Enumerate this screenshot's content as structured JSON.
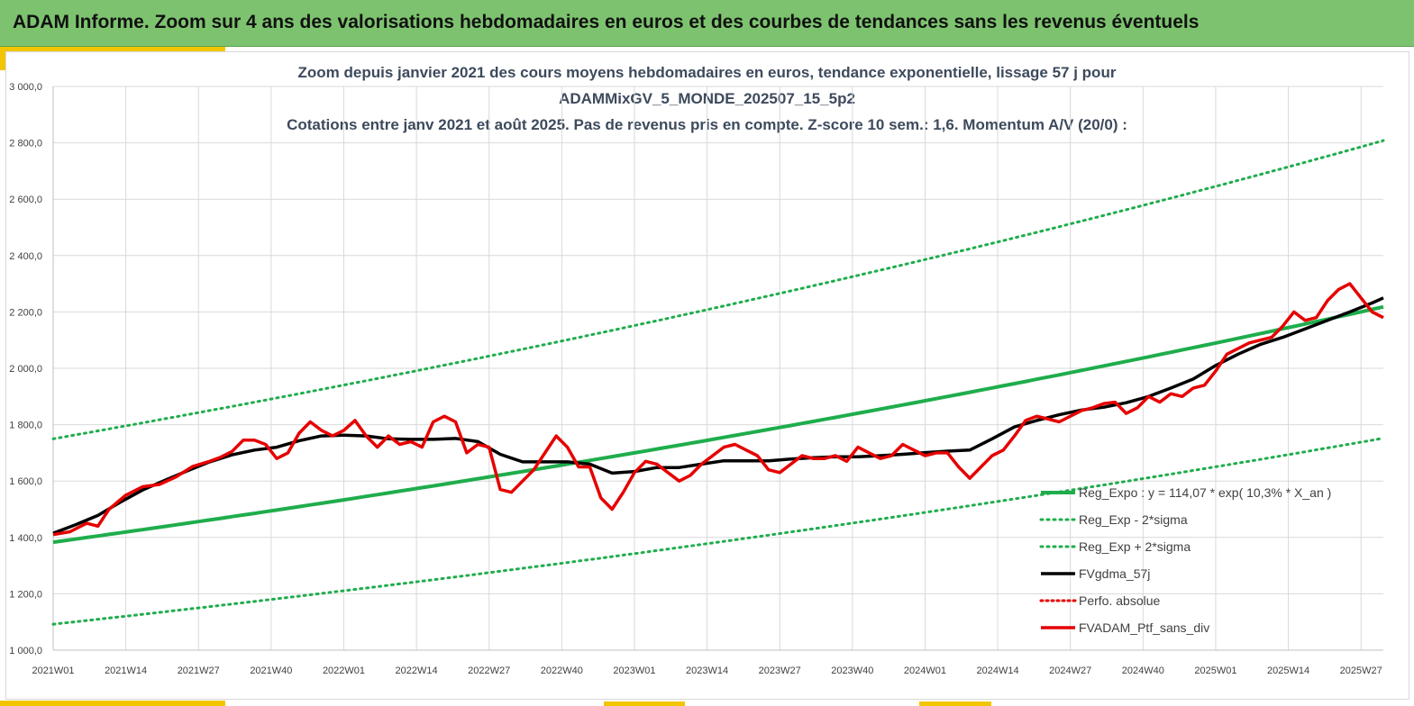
{
  "banner": {
    "title": "ADAM Informe. Zoom sur 4 ans des valorisations hebdomadaires en euros et des courbes de tendances sans les revenus éventuels"
  },
  "colors": {
    "banner": "#7dc36f",
    "accent": "#f2c500",
    "reg_expo": "#1fad4c",
    "sigma_bands": "#1fad4c",
    "fvgdma": "#000000",
    "perfo": "#e60000",
    "fvadam": "#e60000"
  },
  "chart_data": {
    "type": "line",
    "title_lines": [
      "Zoom depuis janvier 2021 des cours moyens hebdomadaires  en euros, tendance exponentielle, lissage 57 j pour",
      "ADAMMixGV_5_MONDE_202507_15_5p2",
      "Cotations entre janv 2021 et août 2025. Pas de revenus pris en compte. Z-score 10 sem.: 1,6. Momentum A/V (20/0) :"
    ],
    "x_tick_labels": [
      "2021W01",
      "2021W14",
      "2021W27",
      "2021W40",
      "2022W01",
      "2022W14",
      "2022W27",
      "2022W40",
      "2023W01",
      "2023W14",
      "2023W27",
      "2023W40",
      "2024W01",
      "2024W14",
      "2024W27",
      "2024W40",
      "2025W01",
      "2025W14",
      "2025W27"
    ],
    "y_tick_labels": [
      "1 000,0",
      "1 200,0",
      "1 400,0",
      "1 600,0",
      "1 800,0",
      "2 000,0",
      "2 200,0",
      "2 400,0",
      "2 600,0",
      "2 800,0",
      "3 000,0"
    ],
    "ylim": [
      1000,
      3000
    ],
    "y_step": 200,
    "x_range_weeks": [
      0,
      238
    ],
    "x_tick_step_weeks": 13,
    "grid": true,
    "legend_position": "lower-right",
    "series": [
      {
        "name": "Reg_Expo : y = 114,07 * exp( 10,3% *  X_an )",
        "style": "solid",
        "x": [
          0,
          238
        ],
        "y": [
          1383,
          2218
        ]
      },
      {
        "name": "Reg_Exp - 2*sigma",
        "style": "dotted",
        "x": [
          0,
          238
        ],
        "y": [
          1092,
          1752
        ]
      },
      {
        "name": "Reg_Exp + 2*sigma",
        "style": "dotted",
        "x": [
          0,
          238
        ],
        "y": [
          1750,
          2808
        ]
      },
      {
        "name": "FVgdma_57j",
        "style": "solid",
        "x": [
          0,
          4,
          8,
          12,
          16,
          20,
          24,
          28,
          32,
          36,
          40,
          44,
          48,
          52,
          56,
          60,
          64,
          68,
          72,
          76,
          80,
          84,
          88,
          92,
          96,
          100,
          104,
          108,
          112,
          116,
          120,
          124,
          128,
          132,
          136,
          140,
          144,
          148,
          152,
          156,
          160,
          164,
          168,
          172,
          176,
          180,
          184,
          188,
          192,
          196,
          200,
          204,
          208,
          212,
          216,
          220,
          224,
          228,
          232,
          236,
          238
        ],
        "y": [
          1415,
          1445,
          1478,
          1525,
          1568,
          1603,
          1636,
          1668,
          1693,
          1710,
          1720,
          1743,
          1760,
          1763,
          1760,
          1750,
          1748,
          1748,
          1751,
          1740,
          1695,
          1668,
          1668,
          1668,
          1660,
          1628,
          1634,
          1648,
          1648,
          1660,
          1672,
          1672,
          1672,
          1678,
          1683,
          1686,
          1686,
          1690,
          1695,
          1701,
          1706,
          1710,
          1750,
          1792,
          1815,
          1835,
          1852,
          1862,
          1878,
          1900,
          1930,
          1962,
          2010,
          2050,
          2085,
          2110,
          2140,
          2170,
          2200,
          2232,
          2250
        ]
      },
      {
        "name": "Perfo. absolue",
        "style": "dotted",
        "x": [],
        "y": []
      },
      {
        "name": "FVADAM_Ptf_sans_div",
        "style": "solid",
        "x": [
          0,
          3,
          6,
          8,
          10,
          13,
          16,
          19,
          22,
          25,
          28,
          30,
          32,
          34,
          36,
          38,
          40,
          42,
          44,
          46,
          48,
          50,
          52,
          54,
          56,
          58,
          60,
          62,
          64,
          66,
          68,
          70,
          72,
          74,
          76,
          78,
          80,
          82,
          84,
          86,
          88,
          90,
          92,
          94,
          96,
          98,
          100,
          102,
          104,
          106,
          108,
          110,
          112,
          114,
          116,
          118,
          120,
          122,
          124,
          126,
          128,
          130,
          132,
          134,
          136,
          138,
          140,
          142,
          144,
          146,
          148,
          150,
          152,
          154,
          156,
          158,
          160,
          162,
          164,
          166,
          168,
          170,
          172,
          174,
          176,
          178,
          180,
          182,
          184,
          186,
          188,
          190,
          192,
          194,
          196,
          198,
          200,
          202,
          204,
          206,
          208,
          210,
          212,
          214,
          216,
          218,
          220,
          222,
          224,
          226,
          228,
          230,
          232,
          234,
          236,
          238
        ],
        "y": [
          1410,
          1420,
          1450,
          1440,
          1500,
          1550,
          1580,
          1588,
          1615,
          1652,
          1670,
          1685,
          1705,
          1745,
          1745,
          1730,
          1680,
          1700,
          1770,
          1810,
          1780,
          1760,
          1780,
          1815,
          1760,
          1720,
          1760,
          1730,
          1740,
          1720,
          1810,
          1830,
          1810,
          1700,
          1730,
          1720,
          1570,
          1560,
          1600,
          1640,
          1700,
          1760,
          1720,
          1650,
          1650,
          1540,
          1500,
          1560,
          1630,
          1670,
          1660,
          1630,
          1600,
          1620,
          1660,
          1690,
          1720,
          1730,
          1710,
          1690,
          1640,
          1630,
          1660,
          1690,
          1680,
          1680,
          1690,
          1670,
          1720,
          1700,
          1680,
          1690,
          1730,
          1710,
          1690,
          1700,
          1700,
          1650,
          1610,
          1650,
          1690,
          1710,
          1760,
          1815,
          1830,
          1820,
          1810,
          1830,
          1850,
          1860,
          1875,
          1880,
          1840,
          1860,
          1900,
          1880,
          1910,
          1900,
          1930,
          1940,
          1990,
          2050,
          2070,
          2090,
          2100,
          2110,
          2150,
          2200,
          2170,
          2180,
          2240,
          2280,
          2300,
          2250,
          2200,
          2180
        ]
      }
    ]
  }
}
